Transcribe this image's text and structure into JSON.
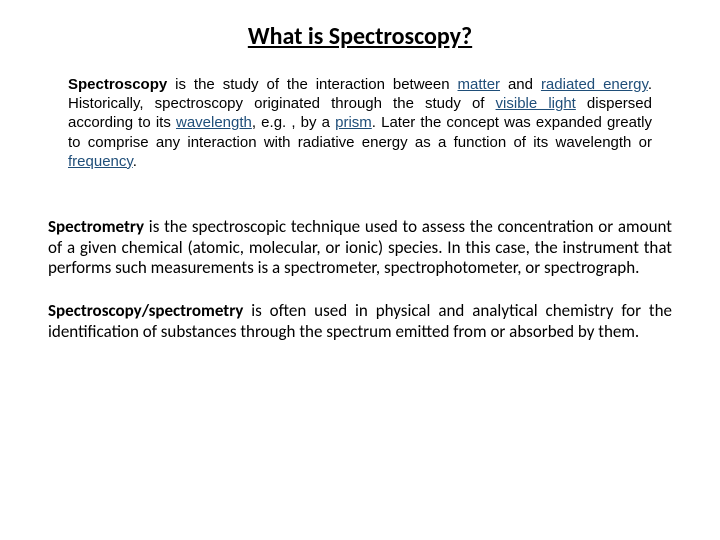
{
  "title": {
    "text": "What is Spectroscopy?",
    "fontsize": 24,
    "color": "#000000"
  },
  "p1": {
    "fontsize": 15,
    "b1": "Spectroscopy",
    "t1": "   is  the  study  of  the  interaction  between ",
    "lk1": "matter",
    "t2": " and ",
    "lk2": "radiated energy",
    "t3": ". Historically, spectroscopy originated through the study of ",
    "lk3": "visible light",
    "t4": " dispersed according to its ",
    "lk4": "wavelength",
    "t5": ", e.g. , by a ",
    "lk5": "prism",
    "t6": ". Later the concept was expanded  greatly  to  comprise  any  interaction  with  radiative  energy  as  a function of its wavelength or ",
    "lk6": "frequency",
    "t7": "."
  },
  "p2": {
    "fontsize": 17,
    "b1": "Spectrometry",
    "t1": " is the spectroscopic technique used to assess the concentration or amount of a given chemical (atomic, molecular, or ionic) species. In this case, the instrument that performs such measurements is a spectrometer, spectrophotometer, or spectrograph."
  },
  "p3": {
    "fontsize": 17,
    "b1": "Spectroscopy/spectrometry",
    "t1": " is often used in physical and analytical chemistry for the identification of substances through the spectrum emitted from or absorbed by them."
  },
  "style": {
    "link_color": "#1f4e79",
    "bg": "#ffffff"
  }
}
